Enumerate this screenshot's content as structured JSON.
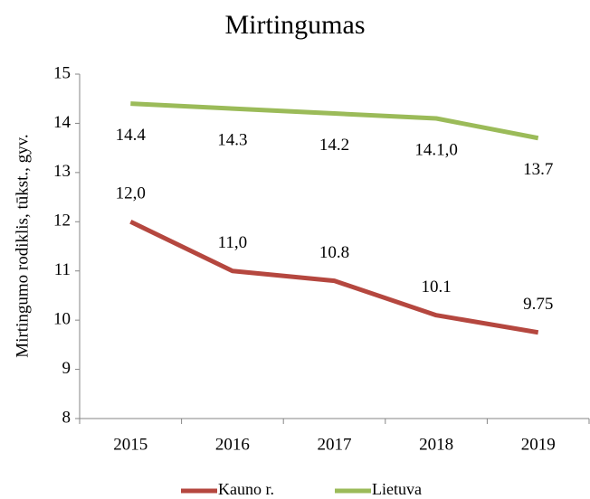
{
  "chart_data": {
    "type": "line",
    "title": "Mirtingumas",
    "y_label": "Mirtingumo rodiklis,  tūkst., gyv.",
    "categories": [
      "2015",
      "2016",
      "2017",
      "2018",
      "2019"
    ],
    "series": [
      {
        "name": "Kauno r.",
        "color": "#b5473f",
        "values": [
          12,
          11,
          10.8,
          10.1,
          9.75
        ],
        "value_labels": [
          "12,0",
          "11,0",
          "10.8",
          "10.1",
          "9.75"
        ]
      },
      {
        "name": "Lietuva",
        "color": "#9bbb59",
        "values": [
          14.4,
          14.3,
          14.2,
          14.1,
          13.7
        ],
        "value_labels": [
          "14.4",
          "14.3",
          "14.2",
          "14.1,0",
          "13.7"
        ]
      }
    ],
    "ylim": [
      8,
      15
    ],
    "yticks": [
      8,
      9,
      10,
      11,
      12,
      13,
      14,
      15
    ],
    "legend": "bottom"
  }
}
